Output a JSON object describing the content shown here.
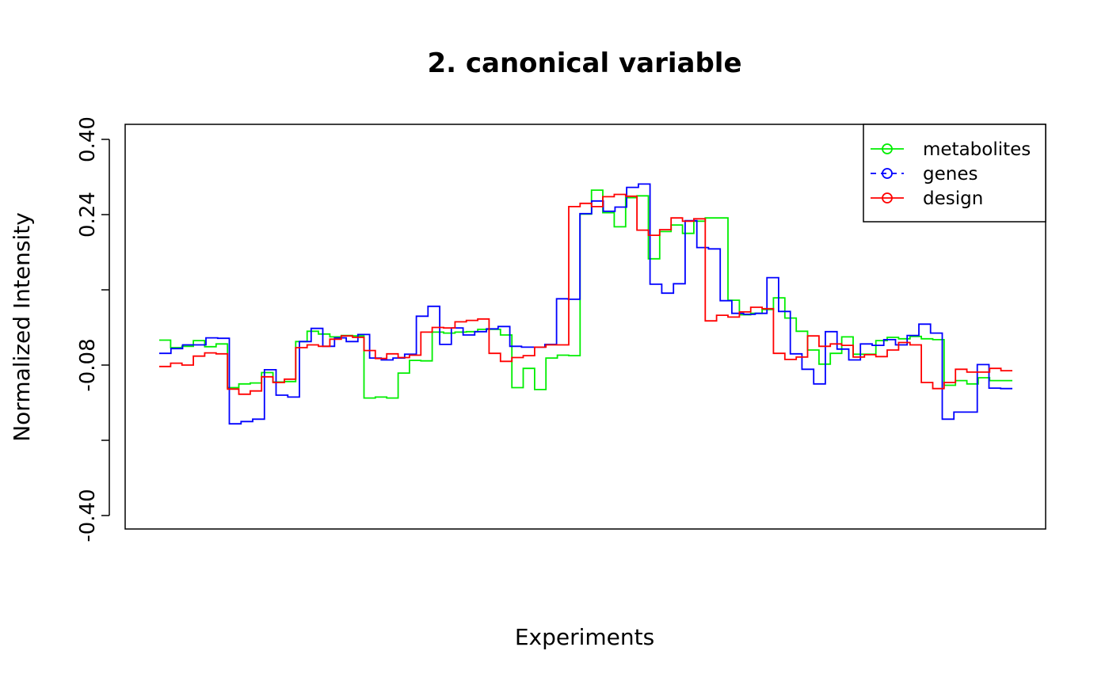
{
  "chart_data": {
    "type": "line",
    "title": "2. canonical variable",
    "xlabel": "Experiments",
    "ylabel": "Normalized Intensity",
    "ylim": [
      -0.4,
      0.4
    ],
    "yticks": [
      0.4,
      0.24,
      0.08,
      -0.08,
      -0.24,
      -0.4
    ],
    "ytick_labels": [
      "0.40",
      "0.24",
      "",
      "-0.08",
      "",
      "-0.40"
    ],
    "x_ticks_shown": false,
    "grid": false,
    "legend": {
      "position": "top-right"
    },
    "series": [
      {
        "name": "metabolites",
        "color": "#00ee00",
        "dashed": false,
        "values": [
          -0.027,
          -0.043,
          -0.04,
          -0.028,
          -0.041,
          -0.035,
          -0.128,
          -0.12,
          -0.118,
          -0.096,
          -0.116,
          -0.115,
          -0.03,
          -0.008,
          -0.014,
          -0.02,
          -0.017,
          -0.018,
          -0.15,
          -0.148,
          -0.15,
          -0.097,
          -0.07,
          -0.071,
          -0.01,
          -0.012,
          -0.01,
          -0.009,
          -0.004,
          -0.004,
          -0.016,
          -0.128,
          -0.087,
          -0.132,
          -0.065,
          -0.059,
          -0.06,
          0.241,
          0.292,
          0.244,
          0.214,
          0.276,
          0.28,
          0.146,
          0.204,
          0.218,
          0.2,
          0.226,
          0.233,
          0.233,
          0.058,
          0.027,
          0.03,
          0.038,
          0.063,
          0.02,
          -0.008,
          -0.048,
          -0.078,
          -0.055,
          -0.02,
          -0.057,
          -0.057,
          -0.028,
          -0.021,
          -0.024,
          -0.019,
          -0.024,
          -0.026,
          -0.123,
          -0.113,
          -0.12,
          -0.107,
          -0.113,
          -0.113
        ]
      },
      {
        "name": "genes",
        "color": "#0000ff",
        "dashed": false,
        "values": [
          -0.055,
          -0.045,
          -0.037,
          -0.037,
          -0.022,
          -0.023,
          -0.205,
          -0.2,
          -0.195,
          -0.09,
          -0.144,
          -0.148,
          -0.03,
          -0.002,
          -0.04,
          -0.022,
          -0.03,
          -0.015,
          -0.065,
          -0.069,
          -0.065,
          -0.057,
          0.024,
          0.045,
          -0.036,
          -0.001,
          -0.016,
          -0.009,
          -0.003,
          0.002,
          -0.04,
          -0.042,
          -0.042,
          -0.036,
          0.061,
          0.06,
          0.242,
          0.269,
          0.247,
          0.256,
          0.298,
          0.305,
          0.092,
          0.073,
          0.093,
          0.227,
          0.17,
          0.167,
          0.057,
          0.03,
          0.028,
          0.03,
          0.106,
          0.034,
          -0.056,
          -0.089,
          -0.12,
          -0.009,
          -0.046,
          -0.069,
          -0.035,
          -0.038,
          -0.026,
          -0.037,
          -0.017,
          0.007,
          -0.012,
          -0.195,
          -0.18,
          -0.18,
          -0.079,
          -0.129,
          -0.13
        ]
      },
      {
        "name": "design",
        "color": "#ff0000",
        "dashed": false,
        "values": [
          -0.083,
          -0.076,
          -0.08,
          -0.061,
          -0.054,
          -0.056,
          -0.131,
          -0.142,
          -0.135,
          -0.105,
          -0.117,
          -0.11,
          -0.043,
          -0.037,
          -0.04,
          -0.025,
          -0.018,
          -0.021,
          -0.049,
          -0.066,
          -0.056,
          -0.064,
          -0.059,
          -0.01,
          0.0,
          -0.001,
          0.012,
          0.015,
          0.018,
          -0.055,
          -0.072,
          -0.064,
          -0.06,
          -0.042,
          -0.037,
          -0.037,
          0.257,
          0.264,
          0.257,
          0.278,
          0.283,
          0.279,
          0.207,
          0.196,
          0.208,
          0.233,
          0.226,
          0.231,
          0.014,
          0.026,
          0.022,
          0.033,
          0.043,
          0.04,
          -0.055,
          -0.068,
          -0.063,
          -0.018,
          -0.04,
          -0.035,
          -0.038,
          -0.063,
          -0.058,
          -0.062,
          -0.048,
          -0.032,
          -0.037,
          -0.117,
          -0.13,
          -0.117,
          -0.089,
          -0.095,
          -0.095,
          -0.087,
          -0.092
        ]
      }
    ]
  }
}
